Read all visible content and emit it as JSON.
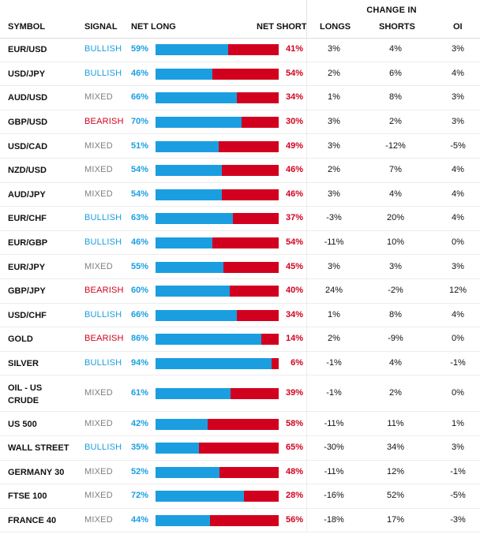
{
  "header": {
    "group_label": "CHANGE IN",
    "columns": {
      "symbol": "SYMBOL",
      "signal": "SIGNAL",
      "net_long": "NET LONG",
      "net_short": "NET SHORT",
      "longs": "LONGS",
      "shorts": "SHORTS",
      "oi": "OI"
    }
  },
  "colors": {
    "long_blue": "#1b9ee0",
    "short_red": "#d2001f",
    "mixed_gray": "#7f7f7f"
  },
  "rows": [
    {
      "symbol": "EUR/USD",
      "signal": "BULLISH",
      "net_long": "59%",
      "net_short": "41%",
      "longs": "3%",
      "shorts": "4%",
      "oi": "3%",
      "long_pct": 59
    },
    {
      "symbol": "USD/JPY",
      "signal": "BULLISH",
      "net_long": "46%",
      "net_short": "54%",
      "longs": "2%",
      "shorts": "6%",
      "oi": "4%",
      "long_pct": 46
    },
    {
      "symbol": "AUD/USD",
      "signal": "MIXED",
      "net_long": "66%",
      "net_short": "34%",
      "longs": "1%",
      "shorts": "8%",
      "oi": "3%",
      "long_pct": 66
    },
    {
      "symbol": "GBP/USD",
      "signal": "BEARISH",
      "net_long": "70%",
      "net_short": "30%",
      "longs": "3%",
      "shorts": "2%",
      "oi": "3%",
      "long_pct": 70
    },
    {
      "symbol": "USD/CAD",
      "signal": "MIXED",
      "net_long": "51%",
      "net_short": "49%",
      "longs": "3%",
      "shorts": "-12%",
      "oi": "-5%",
      "long_pct": 51
    },
    {
      "symbol": "NZD/USD",
      "signal": "MIXED",
      "net_long": "54%",
      "net_short": "46%",
      "longs": "2%",
      "shorts": "7%",
      "oi": "4%",
      "long_pct": 54
    },
    {
      "symbol": "AUD/JPY",
      "signal": "MIXED",
      "net_long": "54%",
      "net_short": "46%",
      "longs": "3%",
      "shorts": "4%",
      "oi": "4%",
      "long_pct": 54
    },
    {
      "symbol": "EUR/CHF",
      "signal": "BULLISH",
      "net_long": "63%",
      "net_short": "37%",
      "longs": "-3%",
      "shorts": "20%",
      "oi": "4%",
      "long_pct": 63
    },
    {
      "symbol": "EUR/GBP",
      "signal": "BULLISH",
      "net_long": "46%",
      "net_short": "54%",
      "longs": "-11%",
      "shorts": "10%",
      "oi": "0%",
      "long_pct": 46
    },
    {
      "symbol": "EUR/JPY",
      "signal": "MIXED",
      "net_long": "55%",
      "net_short": "45%",
      "longs": "3%",
      "shorts": "3%",
      "oi": "3%",
      "long_pct": 55
    },
    {
      "symbol": "GBP/JPY",
      "signal": "BEARISH",
      "net_long": "60%",
      "net_short": "40%",
      "longs": "24%",
      "shorts": "-2%",
      "oi": "12%",
      "long_pct": 60
    },
    {
      "symbol": "USD/CHF",
      "signal": "BULLISH",
      "net_long": "66%",
      "net_short": "34%",
      "longs": "1%",
      "shorts": "8%",
      "oi": "4%",
      "long_pct": 66
    },
    {
      "symbol": "GOLD",
      "signal": "BEARISH",
      "net_long": "86%",
      "net_short": "14%",
      "longs": "2%",
      "shorts": "-9%",
      "oi": "0%",
      "long_pct": 86
    },
    {
      "symbol": "SILVER",
      "signal": "BULLISH",
      "net_long": "94%",
      "net_short": "6%",
      "longs": "-1%",
      "shorts": "4%",
      "oi": "-1%",
      "long_pct": 94
    },
    {
      "symbol": "OIL - US CRUDE",
      "symbol_line1": "OIL - US",
      "symbol_line2": "CRUDE",
      "signal": "MIXED",
      "net_long": "61%",
      "net_short": "39%",
      "longs": "-1%",
      "shorts": "2%",
      "oi": "0%",
      "long_pct": 61
    },
    {
      "symbol": "US 500",
      "signal": "MIXED",
      "net_long": "42%",
      "net_short": "58%",
      "longs": "-11%",
      "shorts": "11%",
      "oi": "1%",
      "long_pct": 42
    },
    {
      "symbol": "WALL STREET",
      "signal": "BULLISH",
      "net_long": "35%",
      "net_short": "65%",
      "longs": "-30%",
      "shorts": "34%",
      "oi": "3%",
      "long_pct": 35
    },
    {
      "symbol": "GERMANY 30",
      "signal": "MIXED",
      "net_long": "52%",
      "net_short": "48%",
      "longs": "-11%",
      "shorts": "12%",
      "oi": "-1%",
      "long_pct": 52
    },
    {
      "symbol": "FTSE 100",
      "signal": "MIXED",
      "net_long": "72%",
      "net_short": "28%",
      "longs": "-16%",
      "shorts": "52%",
      "oi": "-5%",
      "long_pct": 72
    },
    {
      "symbol": "FRANCE 40",
      "signal": "MIXED",
      "net_long": "44%",
      "net_short": "56%",
      "longs": "-18%",
      "shorts": "17%",
      "oi": "-3%",
      "long_pct": 44
    }
  ]
}
